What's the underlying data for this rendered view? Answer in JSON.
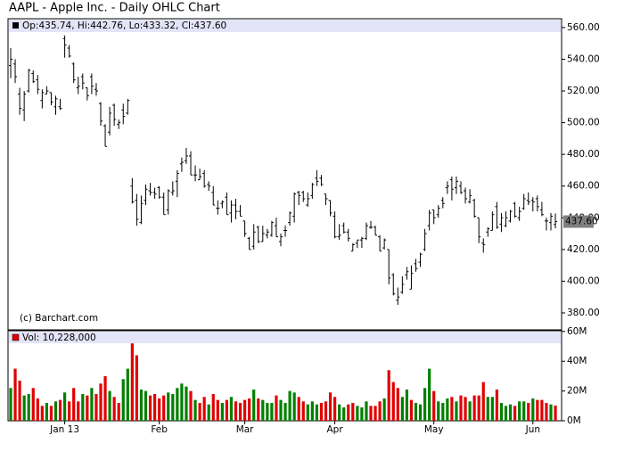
{
  "chart_data": {
    "type": "ohlc",
    "title": "AAPL - Apple Inc. - Daily OHLC Chart",
    "legend_text": "Op:435.74, Hi:442.76, Lo:433.32, Cl:437.60",
    "watermark": "(c) Barchart.com",
    "price_tag": "437.60",
    "bar_color": "#000000",
    "categories": [
      null,
      null,
      null,
      null,
      null,
      null,
      null,
      null,
      null,
      null,
      null,
      null,
      "Jan 13",
      null,
      null,
      null,
      null,
      null,
      null,
      null,
      null,
      null,
      null,
      null,
      null,
      null,
      null,
      null,
      null,
      null,
      null,
      null,
      null,
      "Feb",
      null,
      null,
      null,
      null,
      null,
      null,
      null,
      null,
      null,
      null,
      null,
      null,
      null,
      null,
      null,
      null,
      null,
      null,
      "Mar",
      null,
      null,
      null,
      null,
      null,
      null,
      null,
      null,
      null,
      null,
      null,
      null,
      null,
      null,
      null,
      null,
      null,
      null,
      null,
      "Apr",
      null,
      null,
      null,
      null,
      null,
      null,
      null,
      null,
      null,
      null,
      null,
      null,
      null,
      null,
      null,
      null,
      null,
      null,
      null,
      null,
      null,
      "May",
      null,
      null,
      null,
      null,
      null,
      null,
      null,
      null,
      null,
      null,
      null,
      null,
      null,
      null,
      null,
      null,
      null,
      null,
      null,
      null,
      null,
      "Jun",
      null,
      null,
      null,
      null,
      null
    ],
    "open": [
      536,
      537,
      518,
      508,
      520,
      531,
      527,
      514,
      518,
      519,
      510,
      510,
      553,
      547,
      537,
      522,
      529,
      522,
      529,
      521,
      512,
      498,
      494,
      511,
      499,
      508,
      506,
      460,
      451,
      437,
      451,
      457,
      456,
      459,
      453,
      445,
      456,
      463,
      474,
      476,
      479,
      467,
      464,
      468,
      461,
      456,
      446,
      449,
      453,
      443,
      448,
      444,
      438,
      427,
      422,
      434,
      425,
      429,
      429,
      435,
      425,
      432,
      437,
      441,
      456,
      456,
      448,
      454,
      465,
      465,
      455,
      451,
      441,
      428,
      435,
      431,
      419,
      424,
      426,
      427,
      434,
      434,
      428,
      421,
      420,
      404,
      388,
      393,
      404,
      395,
      411,
      412,
      420,
      435,
      445,
      442,
      451,
      459,
      464,
      459,
      460,
      457,
      450,
      451,
      440,
      424,
      431,
      432,
      447,
      436,
      435,
      438,
      449,
      440,
      446,
      451,
      451,
      452,
      445,
      438,
      437,
      435.74
    ],
    "high": [
      547,
      540,
      522,
      520,
      534,
      533,
      530,
      521,
      523,
      519,
      517,
      515,
      555,
      549,
      538,
      529,
      531,
      522,
      531,
      525,
      513,
      499,
      510,
      512,
      502,
      512,
      515,
      465,
      455,
      454,
      461,
      462,
      459,
      460,
      456,
      458,
      463,
      470,
      478,
      484,
      482,
      473,
      471,
      470,
      463,
      460,
      451,
      451,
      456,
      451,
      452,
      448,
      438,
      428,
      436,
      435,
      435,
      433,
      438,
      440,
      430,
      435,
      444,
      456,
      457,
      457,
      456,
      462,
      470,
      467,
      455,
      451,
      444,
      436,
      437,
      433,
      424,
      426,
      428,
      437,
      438,
      435,
      429,
      427,
      420,
      405,
      396,
      403,
      409,
      410,
      414,
      418,
      433,
      445,
      445,
      448,
      453,
      463,
      466,
      466,
      463,
      459,
      458,
      452,
      440,
      427,
      434,
      444,
      450,
      443,
      444,
      445,
      450,
      447,
      455,
      456,
      453,
      454,
      450,
      440,
      443,
      442.76
    ],
    "low": [
      528,
      525,
      505,
      501,
      519,
      525,
      518,
      509,
      518,
      511,
      505,
      508,
      541,
      541,
      525,
      518,
      521,
      514,
      518,
      517,
      498,
      485,
      492,
      498,
      496,
      499,
      505,
      449,
      435,
      436,
      448,
      454,
      452,
      452,
      442,
      442,
      454,
      453,
      469,
      474,
      467,
      463,
      464,
      459,
      457,
      448,
      442,
      446,
      442,
      437,
      439,
      441,
      428,
      420,
      420,
      424,
      425,
      427,
      428,
      428,
      422,
      428,
      435,
      437,
      448,
      450,
      447,
      452,
      460,
      460,
      448,
      441,
      427,
      426,
      430,
      425,
      419,
      421,
      421,
      426,
      433,
      429,
      419,
      420,
      398,
      391,
      385,
      392,
      401,
      395,
      406,
      409,
      419,
      432,
      436,
      440,
      446,
      455,
      451,
      455,
      455,
      449,
      449,
      440,
      424,
      418,
      428,
      432,
      433,
      431,
      434,
      437,
      440,
      438,
      445,
      448,
      444,
      444,
      441,
      432,
      432,
      433.32
    ],
    "close": [
      540,
      529,
      509,
      518,
      533,
      526,
      521,
      519,
      520,
      513,
      515,
      509,
      549,
      542,
      527,
      523,
      525,
      517,
      523,
      520,
      501,
      485,
      506,
      502,
      500,
      504,
      514,
      450,
      439,
      449,
      458,
      456,
      455,
      453,
      442,
      457,
      457,
      468,
      475,
      479,
      467,
      467,
      466,
      460,
      460,
      448,
      446,
      450,
      442,
      448,
      444,
      441,
      430,
      420,
      431,
      425,
      430,
      431,
      437,
      428,
      428,
      432,
      443,
      455,
      454,
      452,
      452,
      461,
      463,
      461,
      452,
      443,
      428,
      429,
      431,
      427,
      423,
      426,
      427,
      435,
      434,
      429,
      419,
      426,
      402,
      392,
      390,
      398,
      406,
      405,
      408,
      417,
      430,
      443,
      440,
      446,
      449,
      460,
      458,
      463,
      456,
      452,
      454,
      441,
      428,
      423,
      433,
      442,
      434,
      440,
      440,
      444,
      441,
      444,
      452,
      450,
      450,
      447,
      442,
      438,
      441,
      437.6
    ],
    "ylim": [
      369.3,
      565
    ],
    "yticks": [
      {
        "value": 380,
        "label": "380.00"
      },
      {
        "value": 400,
        "label": "400.00"
      },
      {
        "value": 420,
        "label": "420.00"
      },
      {
        "value": 440,
        "label": "440.00"
      },
      {
        "value": 460,
        "label": "460.00"
      },
      {
        "value": 480,
        "label": "480.00"
      },
      {
        "value": 500,
        "label": "500.00"
      },
      {
        "value": 520,
        "label": "520.00"
      },
      {
        "value": 540,
        "label": "540.00"
      },
      {
        "value": 560,
        "label": "560.00"
      }
    ],
    "volume": {
      "legend_text": "Vol: 10,228,000",
      "up_color": "#008000",
      "down_color": "#e00000",
      "values": [
        22,
        35,
        27,
        17,
        18,
        22,
        15,
        10,
        12,
        10,
        13,
        14,
        19,
        13,
        22,
        13,
        18,
        17,
        22,
        18,
        25,
        30,
        20,
        16,
        12,
        28,
        35,
        52,
        44,
        21,
        20,
        17,
        18,
        15,
        17,
        19,
        18,
        22,
        25,
        23,
        20,
        14,
        12,
        16,
        11,
        18,
        14,
        12,
        14,
        16,
        13,
        12,
        14,
        15,
        21,
        15,
        14,
        12,
        12,
        17,
        14,
        12,
        20,
        19,
        16,
        13,
        11,
        13,
        11,
        12,
        13,
        19,
        16,
        11,
        9,
        11,
        12,
        10,
        9,
        13,
        10,
        10,
        13,
        15,
        34,
        26,
        22,
        16,
        21,
        14,
        12,
        11,
        22,
        35,
        20,
        13,
        12,
        15,
        16,
        13,
        17,
        16,
        13,
        17,
        17,
        26,
        16,
        16,
        21,
        12,
        10,
        11,
        10,
        13,
        13,
        12,
        15,
        14,
        14,
        12,
        11,
        10.228
      ],
      "ylim": [
        0,
        60.5
      ],
      "yticks": [
        {
          "value": 0,
          "label": "0M"
        },
        {
          "value": 20,
          "label": "20M"
        },
        {
          "value": 40,
          "label": "40M"
        },
        {
          "value": 60,
          "label": "60M"
        }
      ]
    }
  }
}
